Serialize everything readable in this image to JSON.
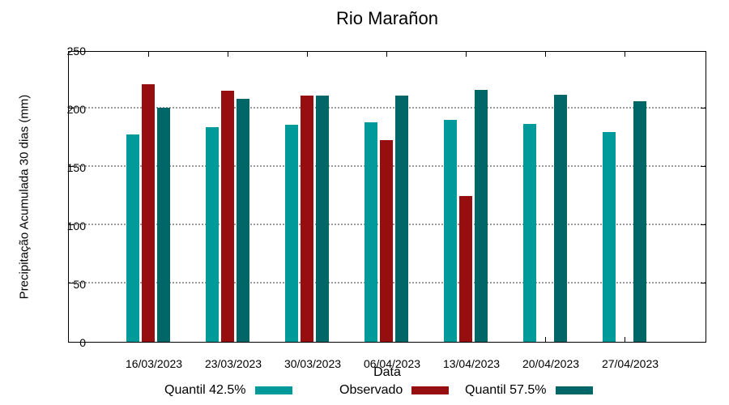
{
  "title": "Rio Marañon",
  "y_axis": {
    "label": "Precipitação Acumulada 30 dias (mm)",
    "tick_values": [
      0,
      50,
      100,
      150,
      200,
      250
    ]
  },
  "x_axis": {
    "label": "Data"
  },
  "legend": {
    "items": [
      {
        "label": "Quantil 42.5%",
        "color": "#009a9a"
      },
      {
        "label": "Observado",
        "color": "#970e11"
      },
      {
        "label": "Quantil 57.5%",
        "color": "#006667"
      }
    ]
  },
  "colors": {
    "quantil_low": "#009a9a",
    "observado": "#970e11",
    "quantil_high": "#006667",
    "grid": "#9a9a9a",
    "axis": "#000000"
  },
  "chart_data": {
    "type": "bar",
    "title": "Rio Marañon",
    "xlabel": "Data",
    "ylabel": "Precipitação Acumulada 30 dias (mm)",
    "ylim": [
      0,
      250
    ],
    "ytick_step": 50,
    "grid": "horizontal-dotted",
    "legend_position": "bottom",
    "categories": [
      "16/03/2023",
      "23/03/2023",
      "30/03/2023",
      "06/04/2023",
      "13/04/2023",
      "20/04/2023",
      "27/04/2023"
    ],
    "series": [
      {
        "name": "Quantil 42.5%",
        "color": "#009a9a",
        "values": [
          178,
          184,
          186,
          188,
          190,
          187,
          180
        ]
      },
      {
        "name": "Observado",
        "color": "#970e11",
        "values": [
          221,
          215,
          211,
          173,
          125,
          null,
          null
        ]
      },
      {
        "name": "Quantil 57.5%",
        "color": "#006667",
        "values": [
          201,
          208,
          211,
          211,
          216,
          212,
          206
        ]
      }
    ]
  }
}
